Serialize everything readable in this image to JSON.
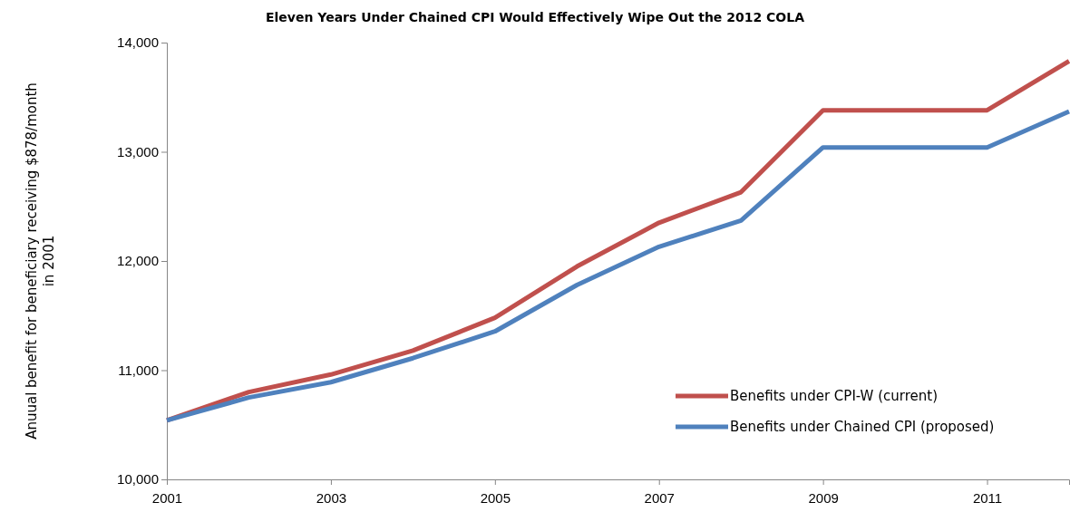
{
  "chart_data": {
    "type": "line",
    "title": "Eleven Years Under Chained CPI Would Effectively Wipe Out the 2012 COLA",
    "ylabel": "Anuual benefit for beneficiary receiving $878/month in 2001",
    "x": [
      2001,
      2002,
      2003,
      2004,
      2005,
      2006,
      2007,
      2008,
      2009,
      2010,
      2011,
      2012
    ],
    "series": [
      {
        "name": "Benefits under CPI-W (current)",
        "color": "#c0504d",
        "values": [
          10540,
          10800,
          10960,
          11180,
          11480,
          11950,
          12350,
          12630,
          13380,
          13380,
          13380,
          13830
        ]
      },
      {
        "name": "Benefits under Chained CPI (proposed)",
        "color": "#4f81bd",
        "values": [
          10540,
          10750,
          10890,
          11110,
          11355,
          11780,
          12130,
          12370,
          13040,
          13040,
          13040,
          13370
        ]
      }
    ],
    "xlim": [
      2001,
      2012
    ],
    "xticks": [
      2001,
      2003,
      2005,
      2007,
      2009,
      2011
    ],
    "ylim": [
      10000,
      14000
    ],
    "yticks": [
      {
        "value": 10000,
        "label": "10,000"
      },
      {
        "value": 11000,
        "label": "11,000"
      },
      {
        "value": 12000,
        "label": "12,000"
      },
      {
        "value": 13000,
        "label": "13,000"
      },
      {
        "value": 14000,
        "label": "14,000"
      }
    ],
    "grid": false,
    "legend": "bottom right",
    "marker": "none",
    "line_style": "solid"
  }
}
